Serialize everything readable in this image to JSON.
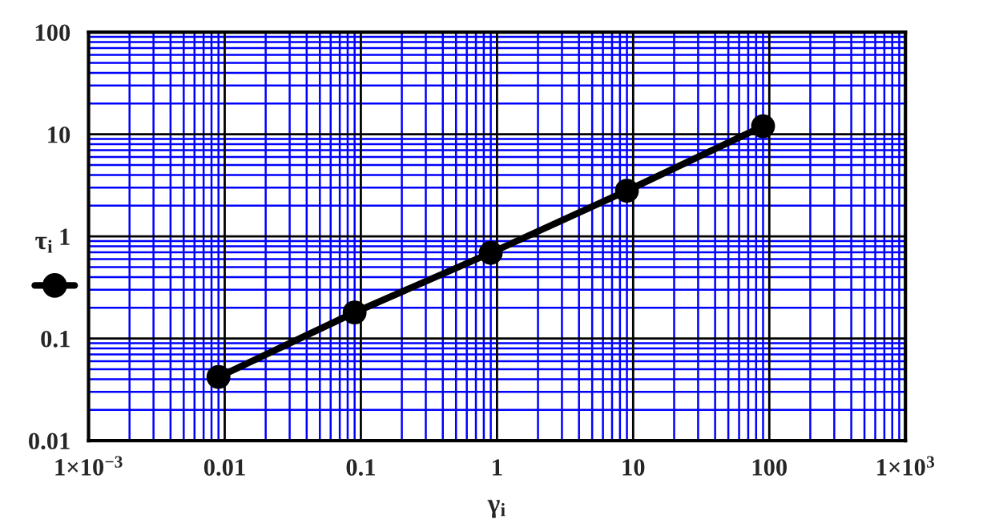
{
  "chart_data": {
    "type": "line",
    "xlabel": "γ$_{i}$",
    "ylabel": "τ$_{i}$",
    "log": "xy",
    "grid": true,
    "marker": "circle",
    "line_style": "solid",
    "xlim": [
      0.001,
      1000
    ],
    "ylim": [
      0.01,
      100
    ],
    "xticks": [
      {
        "value": 0.001,
        "label": "1×10$^{−3}$"
      },
      0.01,
      0.1,
      1,
      10,
      100,
      {
        "value": 1000,
        "label": "1×10$^{3}$"
      },
      {
        "value": 0.002,
        "label": null
      },
      {
        "value": 0.003,
        "label": null
      },
      {
        "value": 0.004,
        "label": null
      },
      {
        "value": 0.005,
        "label": null
      },
      {
        "value": 0.006,
        "label": null
      },
      {
        "value": 0.007,
        "label": null
      },
      {
        "value": 0.008,
        "label": null
      },
      {
        "value": 0.009,
        "label": null
      },
      {
        "value": 0.02,
        "label": null
      },
      {
        "value": 0.03,
        "label": null
      },
      {
        "value": 0.04,
        "label": null
      },
      {
        "value": 0.05,
        "label": null
      },
      {
        "value": 0.06,
        "label": null
      },
      {
        "value": 0.07,
        "label": null
      },
      {
        "value": 0.08,
        "label": null
      },
      {
        "value": 0.09,
        "label": null
      },
      {
        "value": 0.2,
        "label": null
      },
      {
        "value": 0.3,
        "label": null
      },
      {
        "value": 0.4,
        "label": null
      },
      {
        "value": 0.5,
        "label": null
      },
      {
        "value": 0.6,
        "label": null
      },
      {
        "value": 0.7,
        "label": null
      },
      {
        "value": 0.8,
        "label": null
      },
      {
        "value": 0.9,
        "label": null
      },
      {
        "value": 2,
        "label": null
      },
      {
        "value": 3,
        "label": null
      },
      {
        "value": 4,
        "label": null
      },
      {
        "value": 5,
        "label": null
      },
      {
        "value": 6,
        "label": null
      },
      {
        "value": 7,
        "label": null
      },
      {
        "value": 8,
        "label": null
      },
      {
        "value": 9,
        "label": null
      },
      {
        "value": 20,
        "label": null
      },
      {
        "value": 30,
        "label": null
      },
      {
        "value": 40,
        "label": null
      },
      {
        "value": 50,
        "label": null
      },
      {
        "value": 60,
        "label": null
      },
      {
        "value": 70,
        "label": null
      },
      {
        "value": 80,
        "label": null
      },
      {
        "value": 90,
        "label": null
      },
      {
        "value": 200,
        "label": null
      },
      {
        "value": 300,
        "label": null
      },
      {
        "value": 400,
        "label": null
      },
      {
        "value": 500,
        "label": null
      },
      {
        "value": 600,
        "label": null
      },
      {
        "value": 700,
        "label": null
      },
      {
        "value": 800,
        "label": null
      },
      {
        "value": 900,
        "label": null
      }
    ],
    "yticks": [
      0.01,
      0.1,
      1,
      10,
      100,
      {
        "value": 0.02,
        "label": null
      },
      {
        "value": 0.03,
        "label": null
      },
      {
        "value": 0.04,
        "label": null
      },
      {
        "value": 0.05,
        "label": null
      },
      {
        "value": 0.06,
        "label": null
      },
      {
        "value": 0.07,
        "label": null
      },
      {
        "value": 0.08,
        "label": null
      },
      {
        "value": 0.09,
        "label": null
      },
      {
        "value": 0.2,
        "label": null
      },
      {
        "value": 0.3,
        "label": null
      },
      {
        "value": 0.4,
        "label": null
      },
      {
        "value": 0.5,
        "label": null
      },
      {
        "value": 0.6,
        "label": null
      },
      {
        "value": 0.7,
        "label": null
      },
      {
        "value": 0.8,
        "label": null
      },
      {
        "value": 0.9,
        "label": null
      },
      {
        "value": 2,
        "label": null
      },
      {
        "value": 3,
        "label": null
      },
      {
        "value": 4,
        "label": null
      },
      {
        "value": 5,
        "label": null
      },
      {
        "value": 6,
        "label": null
      },
      {
        "value": 7,
        "label": null
      },
      {
        "value": 8,
        "label": null
      },
      {
        "value": 9,
        "label": null
      },
      {
        "value": 20,
        "label": null
      },
      {
        "value": 30,
        "label": null
      },
      {
        "value": 40,
        "label": null
      },
      {
        "value": 50,
        "label": null
      },
      {
        "value": 60,
        "label": null
      },
      {
        "value": 70,
        "label": null
      },
      {
        "value": 80,
        "label": null
      },
      {
        "value": 90,
        "label": null
      }
    ],
    "x": [
      0.009,
      0.09,
      0.9,
      9,
      90
    ],
    "series": [
      {
        "color": "#000000",
        "values": [
          0.042,
          0.18,
          0.69,
          2.8,
          12
        ]
      }
    ]
  }
}
